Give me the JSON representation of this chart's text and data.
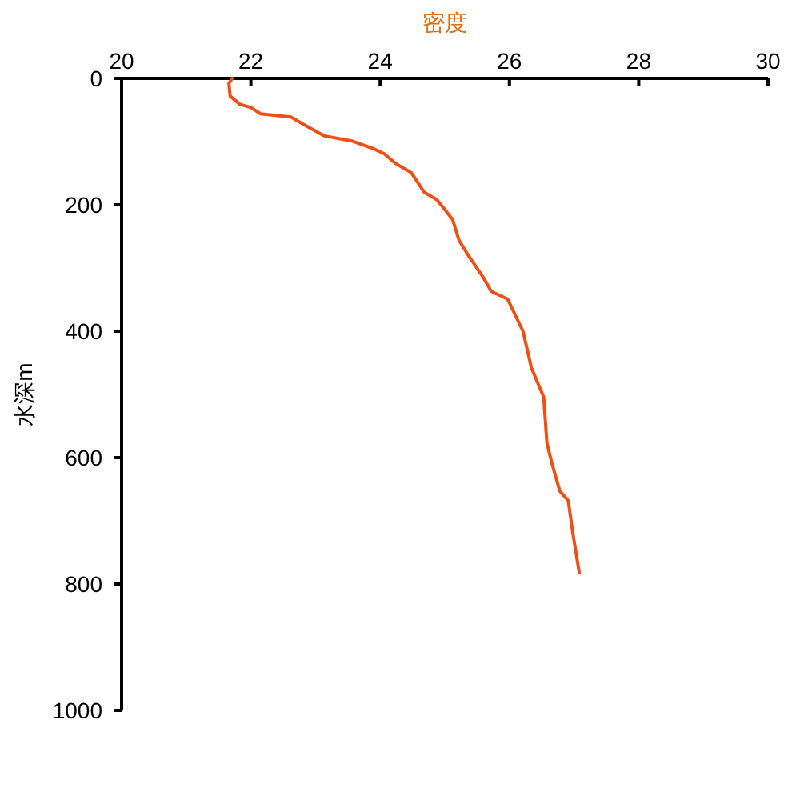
{
  "chart_data": {
    "type": "line",
    "xlabel": "密度",
    "ylabel": "水深m",
    "xlim": [
      20,
      30
    ],
    "xticks": [
      20,
      22,
      24,
      26,
      28,
      30
    ],
    "ylim": [
      1000,
      0
    ],
    "yticks": [
      0,
      200,
      400,
      600,
      800,
      1000
    ],
    "grid": false,
    "marker": "none",
    "line_style": "solid",
    "series": [
      {
        "color": "#f04e14",
        "x": [
          21.71,
          21.66,
          21.68,
          21.83,
          22.0,
          22.15,
          22.62,
          22.82,
          23.14,
          23.56,
          23.89,
          24.06,
          24.23,
          24.48,
          24.68,
          24.88,
          25.12,
          25.22,
          25.37,
          25.59,
          25.72,
          25.97,
          26.21,
          26.34,
          26.53,
          26.58,
          26.66,
          26.78,
          26.91,
          26.98,
          27.08
        ],
        "values": [
          0,
          8,
          28,
          41,
          46,
          56,
          61,
          73,
          91,
          99,
          111,
          119,
          134,
          149,
          180,
          192,
          223,
          256,
          281,
          314,
          337,
          349,
          400,
          458,
          504,
          577,
          610,
          653,
          668,
          719,
          782
        ]
      }
    ]
  }
}
